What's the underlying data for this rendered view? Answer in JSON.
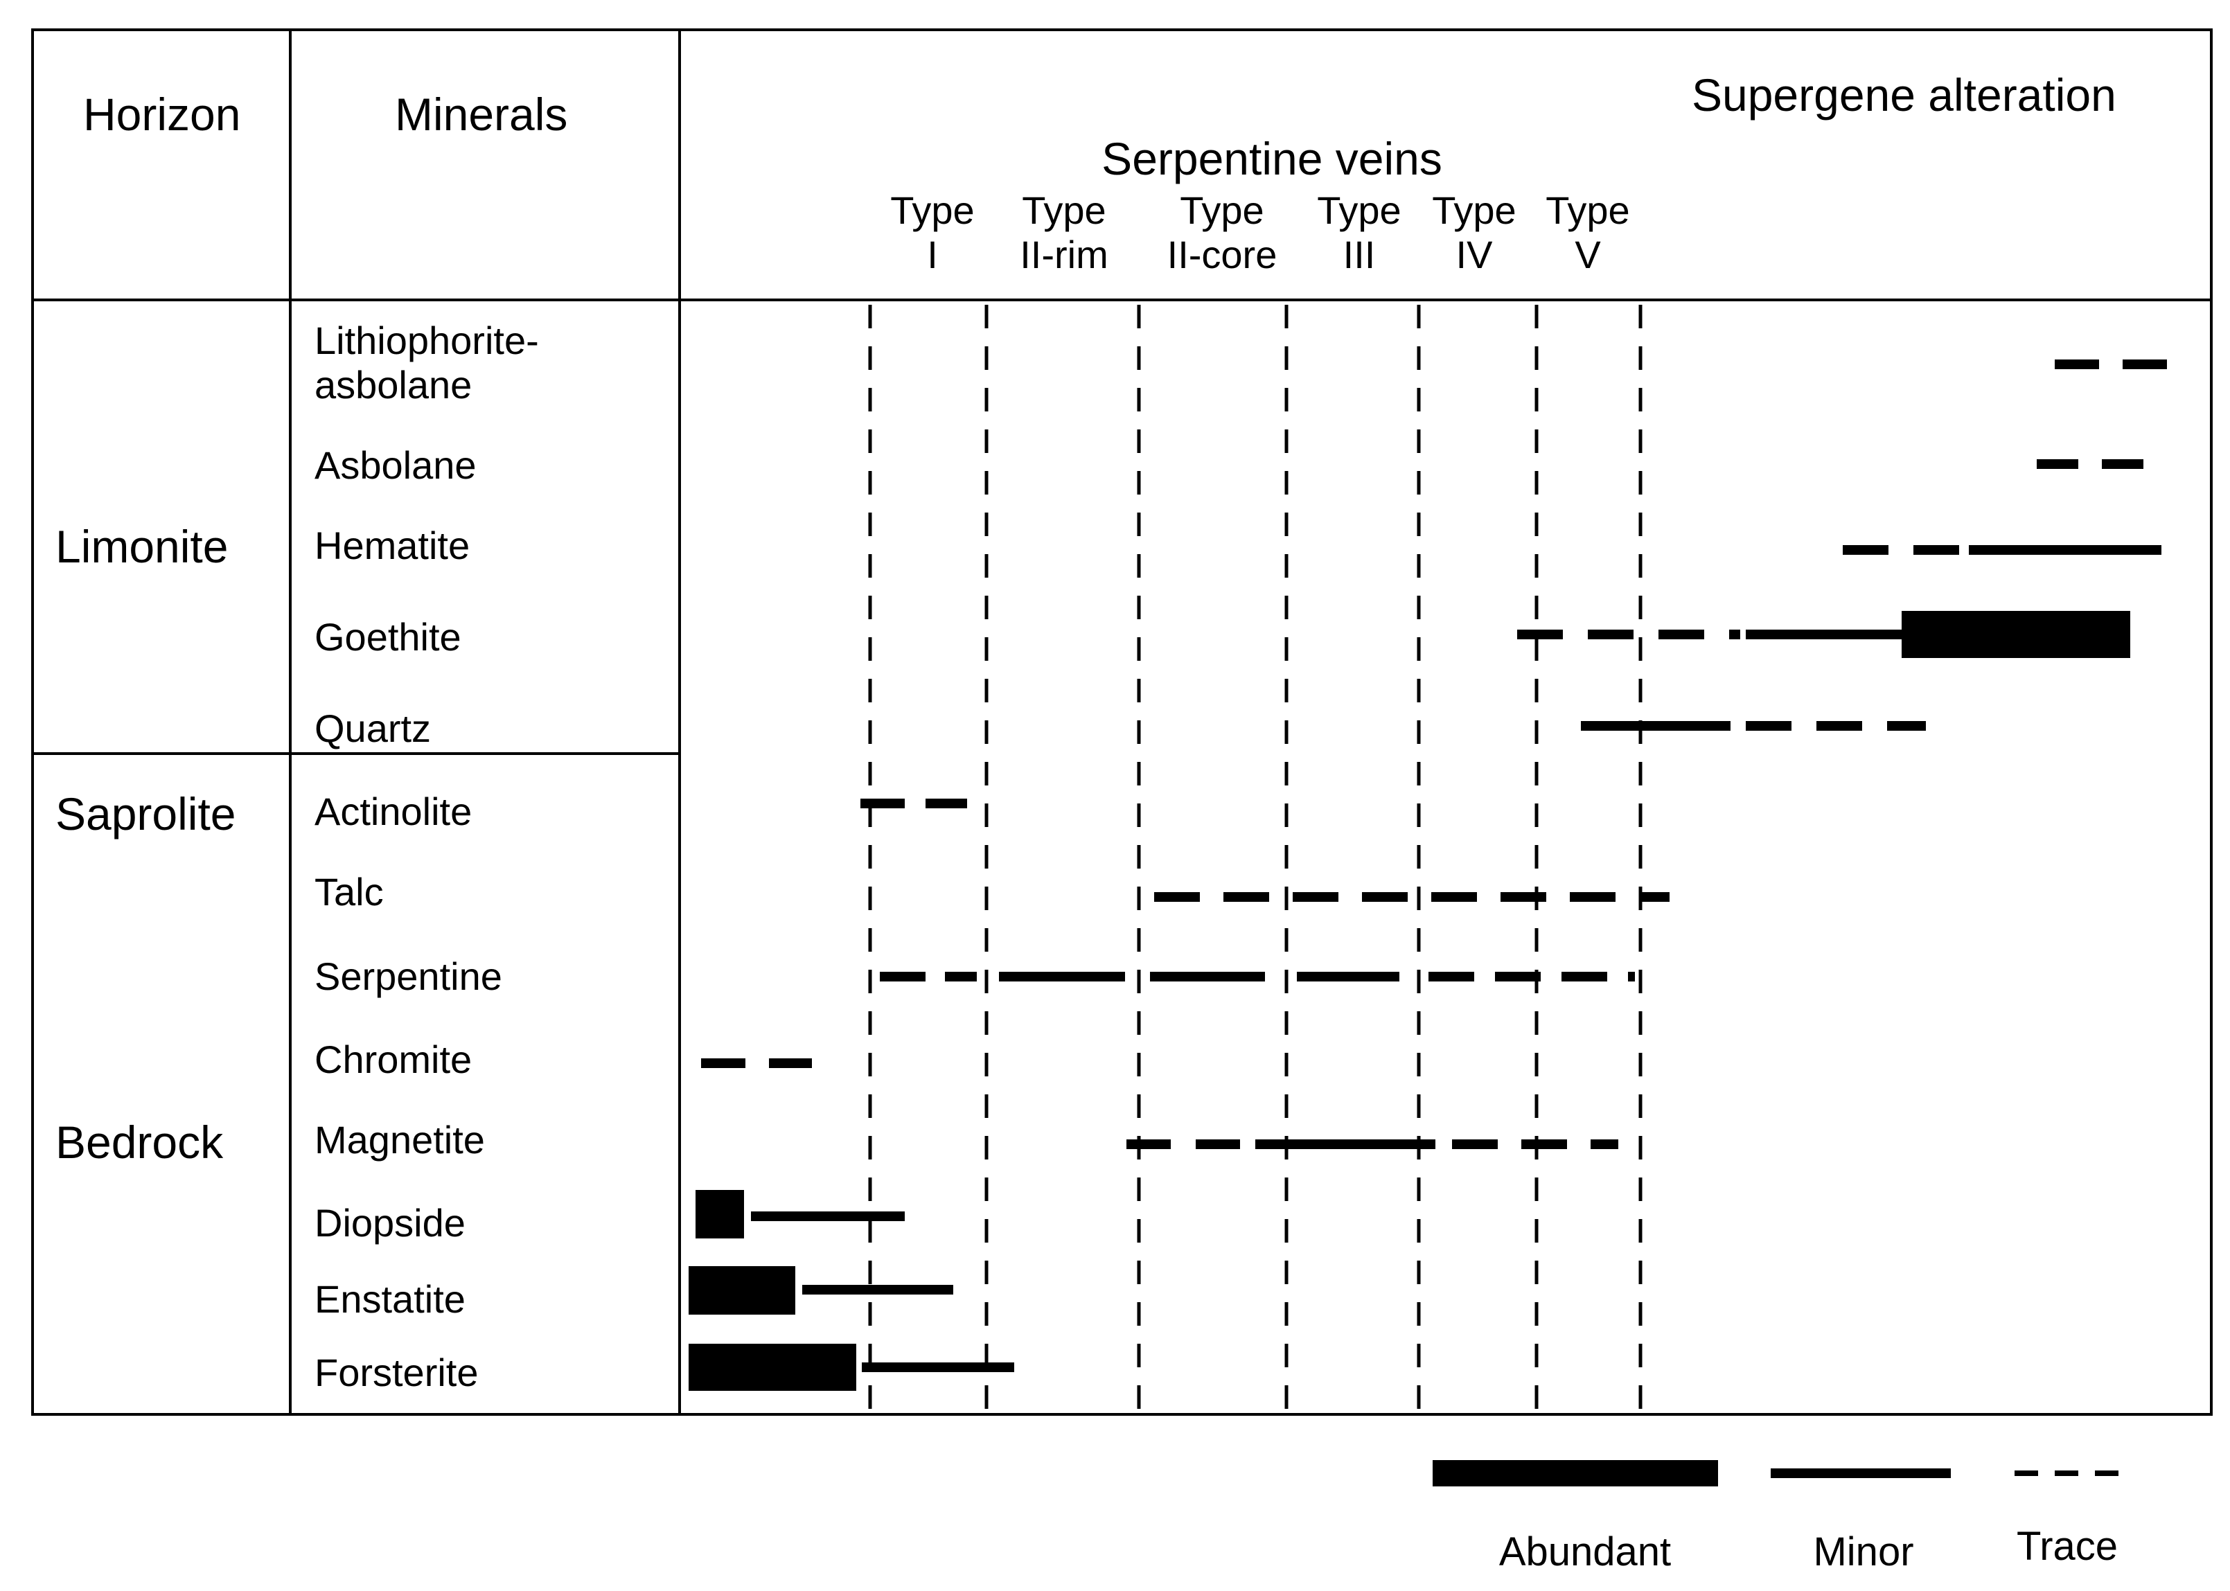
{
  "headers": {
    "horizon": "Horizon",
    "minerals": "Minerals",
    "supergene": "Supergene alteration",
    "serpentine_veins": "Serpentine veins"
  },
  "vein_types": [
    {
      "line1": "Type",
      "line2": "I"
    },
    {
      "line1": "Type",
      "line2": "II-rim"
    },
    {
      "line1": "Type",
      "line2": "II-core"
    },
    {
      "line1": "Type",
      "line2": "III"
    },
    {
      "line1": "Type",
      "line2": "IV"
    },
    {
      "line1": "Type",
      "line2": "V"
    }
  ],
  "horizons": [
    "Limonite",
    "Saprolite",
    "Bedrock"
  ],
  "minerals": [
    {
      "name_line1": "Lithiophorite-",
      "name_line2": "asbolane"
    },
    {
      "name": "Asbolane"
    },
    {
      "name": "Hematite"
    },
    {
      "name": "Goethite"
    },
    {
      "name": "Quartz"
    },
    {
      "name": "Actinolite"
    },
    {
      "name": "Talc"
    },
    {
      "name": "Serpentine"
    },
    {
      "name": "Chromite"
    },
    {
      "name": "Magnetite"
    },
    {
      "name": "Diopside"
    },
    {
      "name": "Enstatite"
    },
    {
      "name": "Forsterite"
    }
  ],
  "legend": {
    "abundant": "Abundant",
    "minor": "Minor",
    "trace": "Trace"
  },
  "colors": {
    "ink": "#000000",
    "background": "#ffffff"
  }
}
